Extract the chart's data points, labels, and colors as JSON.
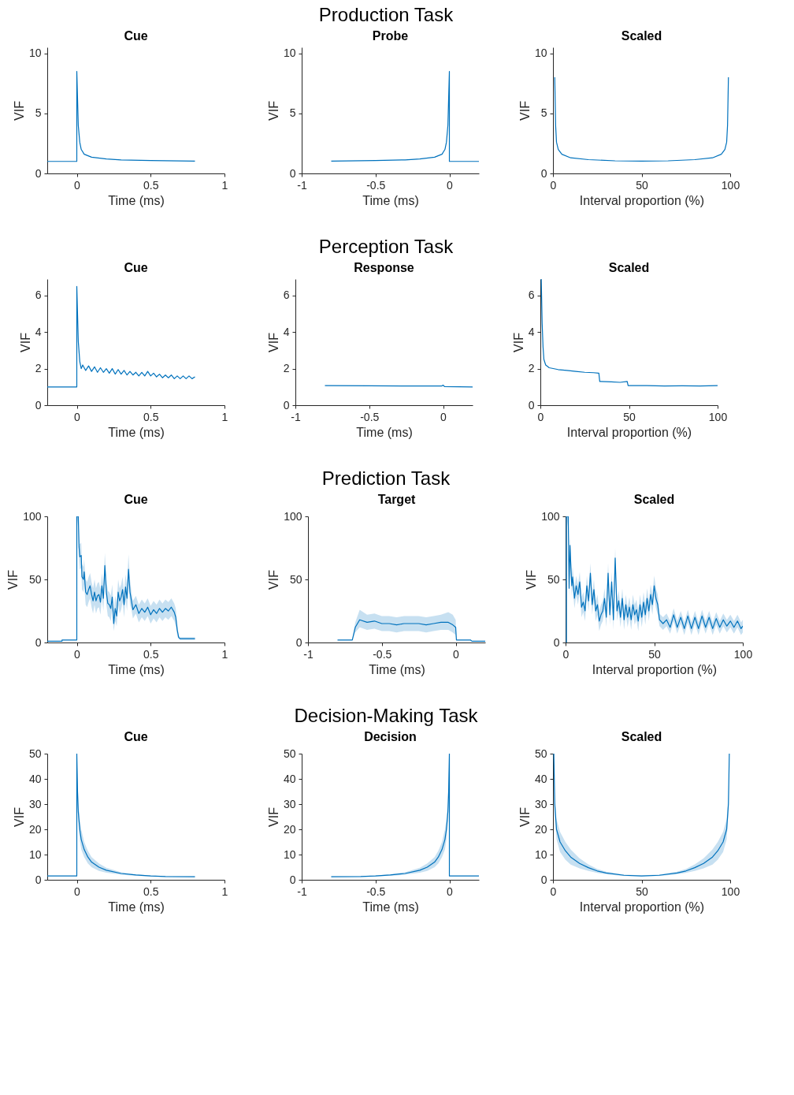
{
  "chart_data": [
    {
      "type": "other",
      "title": "Production Task"
    },
    {
      "type": "line",
      "title": "Cue",
      "xlabel": "Time (ms)",
      "ylabel": "VIF",
      "xlim": [
        -0.2,
        1
      ],
      "xticks": [
        0,
        0.5,
        1
      ],
      "ylim": [
        0,
        10.5
      ],
      "yticks": [
        0,
        5,
        10
      ],
      "series": [
        {
          "color": "#0072bd",
          "x": [
            -0.2,
            0,
            0,
            0.01,
            0.02,
            0.03,
            0.05,
            0.1,
            0.2,
            0.3,
            0.5,
            0.8
          ],
          "values": [
            1.0,
            1.0,
            8.5,
            4,
            2.6,
            2.0,
            1.6,
            1.35,
            1.2,
            1.13,
            1.07,
            1.03
          ]
        }
      ]
    },
    {
      "type": "line",
      "title": "Probe",
      "xlabel": "Time (ms)",
      "ylabel": "VIF",
      "xlim": [
        -1,
        0.2
      ],
      "xticks": [
        -1,
        -0.5,
        0
      ],
      "ylim": [
        0,
        10.5
      ],
      "yticks": [
        0,
        5,
        10
      ],
      "series": [
        {
          "color": "#0072bd",
          "x": [
            -0.8,
            -0.5,
            -0.3,
            -0.2,
            -0.1,
            -0.05,
            -0.03,
            -0.02,
            -0.01,
            0,
            0,
            0.2
          ],
          "values": [
            1.02,
            1.07,
            1.13,
            1.2,
            1.35,
            1.6,
            2.0,
            2.6,
            4,
            8.5,
            1.0,
            1.0
          ]
        }
      ]
    },
    {
      "type": "line",
      "title": "Scaled",
      "xlabel": "Interval proportion (%)",
      "ylabel": "VIF",
      "xlim": [
        0,
        100
      ],
      "xticks": [
        0,
        50,
        100
      ],
      "ylim": [
        0,
        10.5
      ],
      "yticks": [
        0,
        5,
        10
      ],
      "series": [
        {
          "color": "#0072bd",
          "x": [
            1,
            1.5,
            2,
            3,
            5,
            10,
            20,
            35,
            50,
            65,
            80,
            90,
            95,
            97,
            98,
            98.5,
            99
          ],
          "values": [
            8.0,
            4,
            2.6,
            2.0,
            1.6,
            1.3,
            1.15,
            1.05,
            1.02,
            1.05,
            1.15,
            1.3,
            1.6,
            2.0,
            2.6,
            4,
            8.0
          ]
        }
      ]
    },
    {
      "type": "other",
      "title": "Perception Task"
    },
    {
      "type": "line",
      "title": "Cue",
      "xlabel": "Time (ms)",
      "ylabel": "VIF",
      "xlim": [
        -0.2,
        1
      ],
      "xticks": [
        0,
        0.5,
        1
      ],
      "ylim": [
        0,
        6.9
      ],
      "yticks": [
        0,
        2,
        4,
        6
      ],
      "series": [
        {
          "color": "#0072bd",
          "x": [
            -0.2,
            0,
            0,
            0.005,
            0.01,
            0.02,
            0.03,
            0.04,
            0.06,
            0.08,
            0.1,
            0.12,
            0.14,
            0.16,
            0.18,
            0.2,
            0.22,
            0.24,
            0.26,
            0.28,
            0.3,
            0.32,
            0.34,
            0.36,
            0.38,
            0.4,
            0.42,
            0.44,
            0.46,
            0.48,
            0.5,
            0.52,
            0.54,
            0.56,
            0.58,
            0.6,
            0.62,
            0.64,
            0.66,
            0.68,
            0.7,
            0.72,
            0.74,
            0.76,
            0.78,
            0.8
          ],
          "values": [
            1,
            1,
            6.5,
            5,
            3.5,
            2.4,
            2.0,
            2.2,
            1.9,
            2.15,
            1.85,
            2.1,
            1.8,
            2.05,
            1.8,
            2.0,
            1.75,
            2.0,
            1.7,
            1.95,
            1.7,
            1.9,
            1.65,
            1.85,
            1.65,
            1.8,
            1.6,
            1.8,
            1.6,
            1.85,
            1.6,
            1.75,
            1.55,
            1.7,
            1.5,
            1.65,
            1.5,
            1.65,
            1.45,
            1.6,
            1.45,
            1.6,
            1.45,
            1.6,
            1.45,
            1.55
          ]
        }
      ]
    },
    {
      "type": "line",
      "title": "Response",
      "xlabel": "Time (ms)",
      "ylabel": "VIF",
      "xlim": [
        -1,
        0.2
      ],
      "xticks": [
        -1,
        -0.5,
        0
      ],
      "ylim": [
        0,
        6.9
      ],
      "yticks": [
        0,
        2,
        4,
        6
      ],
      "series": [
        {
          "color": "#0072bd",
          "x": [
            -0.8,
            -0.5,
            -0.2,
            -0.01,
            0,
            0.01,
            0.2
          ],
          "values": [
            1.07,
            1.06,
            1.05,
            1.05,
            1.1,
            1.02,
            1.0
          ]
        }
      ]
    },
    {
      "type": "line",
      "title": "Scaled",
      "xlabel": "Interval proportion (%)",
      "ylabel": "VIF",
      "xlim": [
        0,
        100
      ],
      "xticks": [
        0,
        50,
        100
      ],
      "ylim": [
        0,
        6.9
      ],
      "yticks": [
        0,
        2,
        4,
        6
      ],
      "series": [
        {
          "color": "#0072bd",
          "x": [
            0.5,
            1,
            1.5,
            2,
            3,
            5,
            10,
            15,
            20,
            25,
            30,
            33,
            33.5,
            40,
            45,
            49,
            49.5,
            60,
            70,
            80,
            90,
            100
          ],
          "values": [
            6.9,
            4.5,
            3.2,
            2.5,
            2.2,
            2.05,
            1.95,
            1.9,
            1.85,
            1.8,
            1.78,
            1.75,
            1.3,
            1.28,
            1.25,
            1.3,
            1.07,
            1.07,
            1.05,
            1.06,
            1.05,
            1.07
          ]
        }
      ]
    },
    {
      "type": "other",
      "title": "Prediction Task"
    },
    {
      "type": "line",
      "title": "Cue",
      "xlabel": "Time (ms)",
      "ylabel": "VIF",
      "xlim": [
        -0.2,
        1
      ],
      "xticks": [
        0,
        0.5,
        1
      ],
      "ylim": [
        0,
        100
      ],
      "yticks": [
        0,
        50,
        100
      ],
      "series": [
        {
          "color": "#0072bd",
          "x": [
            -0.2,
            -0.1,
            -0.1,
            0,
            0,
            0.01,
            0.015,
            0.02,
            0.03,
            0.035,
            0.045,
            0.05,
            0.06,
            0.07,
            0.08,
            0.09,
            0.1,
            0.11,
            0.12,
            0.13,
            0.14,
            0.15,
            0.16,
            0.17,
            0.18,
            0.19,
            0.2,
            0.21,
            0.22,
            0.23,
            0.24,
            0.25,
            0.26,
            0.27,
            0.28,
            0.29,
            0.3,
            0.31,
            0.32,
            0.33,
            0.34,
            0.35,
            0.36,
            0.37,
            0.38,
            0.4,
            0.42,
            0.44,
            0.46,
            0.48,
            0.5,
            0.52,
            0.54,
            0.56,
            0.58,
            0.6,
            0.62,
            0.64,
            0.66,
            0.67,
            0.68,
            0.69,
            0.7,
            0.75,
            0.8
          ],
          "values": [
            1,
            1,
            2,
            2,
            100,
            100,
            76,
            68,
            69,
            52,
            50,
            56,
            40,
            38,
            42,
            45,
            38,
            33,
            40,
            33,
            37,
            38,
            32,
            45,
            35,
            61,
            40,
            31,
            30,
            27,
            36,
            15,
            27,
            21,
            40,
            33,
            36,
            42,
            30,
            44,
            35,
            58,
            40,
            33,
            26,
            30,
            23,
            27,
            24,
            28,
            22,
            26,
            23,
            27,
            24,
            27,
            25,
            28,
            24,
            20,
            10,
            4,
            3,
            3,
            3
          ],
          "lower": [
            1,
            1,
            2,
            2,
            100,
            90,
            66,
            58,
            59,
            42,
            40,
            46,
            30,
            28,
            32,
            35,
            28,
            23,
            30,
            23,
            27,
            28,
            22,
            35,
            25,
            51,
            30,
            21,
            20,
            17,
            26,
            9,
            17,
            13,
            30,
            23,
            26,
            32,
            20,
            34,
            25,
            48,
            30,
            26,
            19,
            23,
            16,
            20,
            17,
            21,
            15,
            19,
            16,
            20,
            17,
            20,
            18,
            21,
            17,
            13,
            5,
            3,
            2,
            2,
            2
          ],
          "upper": [
            1,
            1,
            2,
            2,
            100,
            100,
            86,
            78,
            79,
            62,
            60,
            66,
            50,
            48,
            52,
            55,
            48,
            43,
            50,
            43,
            47,
            48,
            42,
            55,
            45,
            71,
            50,
            41,
            40,
            37,
            46,
            25,
            37,
            31,
            50,
            43,
            46,
            52,
            40,
            54,
            45,
            70,
            50,
            40,
            33,
            37,
            30,
            34,
            31,
            35,
            29,
            33,
            30,
            34,
            31,
            34,
            32,
            35,
            31,
            27,
            15,
            5,
            4,
            4,
            4
          ]
        }
      ]
    },
    {
      "type": "line",
      "title": "Target",
      "xlabel": "Time (ms)",
      "ylabel": "VIF",
      "xlim": [
        -1,
        0.2
      ],
      "xticks": [
        -1,
        -0.5,
        0
      ],
      "ylim": [
        0,
        100
      ],
      "yticks": [
        0,
        50,
        100
      ],
      "series": [
        {
          "color": "#0072bd",
          "x": [
            -0.8,
            -0.7,
            -0.68,
            -0.65,
            -0.6,
            -0.55,
            -0.5,
            -0.45,
            -0.4,
            -0.35,
            -0.3,
            -0.25,
            -0.2,
            -0.15,
            -0.1,
            -0.05,
            -0.02,
            0,
            0.005,
            0.1,
            0.11,
            0.2
          ],
          "values": [
            2,
            2,
            12,
            18,
            16,
            17,
            15,
            15,
            14,
            15,
            15,
            15,
            14,
            15,
            16,
            16,
            14,
            12,
            2,
            2,
            1,
            1
          ],
          "lower": [
            2,
            2,
            8,
            12,
            10,
            11,
            9,
            9,
            8,
            9,
            9,
            9,
            8,
            9,
            10,
            10,
            8,
            6,
            2,
            2,
            1,
            1
          ],
          "upper": [
            2,
            2,
            16,
            26,
            22,
            23,
            21,
            21,
            20,
            21,
            21,
            21,
            20,
            21,
            22,
            24,
            22,
            18,
            2,
            2,
            1,
            1
          ]
        }
      ]
    },
    {
      "type": "line",
      "title": "Scaled",
      "xlabel": "Interval proportion (%)",
      "ylabel": "VIF",
      "xlim": [
        0,
        100
      ],
      "xticks": [
        0,
        50,
        100
      ],
      "ylim": [
        0,
        100
      ],
      "yticks": [
        0,
        50,
        100
      ],
      "series": [
        {
          "color": "#0072bd",
          "x": [
            0.5,
            0.5,
            1.5,
            2,
            2.5,
            3,
            3.5,
            4,
            5,
            6,
            7,
            8,
            9,
            10,
            11,
            12,
            13,
            14,
            15,
            16,
            17,
            18,
            19,
            20,
            21,
            22,
            23,
            24,
            25,
            26,
            27,
            28,
            29,
            30,
            31,
            32,
            33,
            34,
            35,
            36,
            37,
            38,
            39,
            40,
            41,
            42,
            43,
            44,
            45,
            46,
            47,
            48,
            49,
            50,
            51,
            52,
            53,
            55,
            57,
            59,
            61,
            63,
            65,
            67,
            69,
            71,
            73,
            75,
            77,
            79,
            81,
            83,
            85,
            87,
            89,
            91,
            93,
            95,
            97,
            99,
            100
          ],
          "values": [
            0,
            100,
            100,
            43,
            77,
            60,
            45,
            52,
            35,
            45,
            38,
            48,
            28,
            32,
            25,
            45,
            33,
            55,
            30,
            42,
            25,
            30,
            17,
            22,
            25,
            35,
            20,
            55,
            22,
            48,
            18,
            67,
            25,
            33,
            20,
            35,
            18,
            30,
            20,
            28,
            18,
            30,
            22,
            26,
            17,
            30,
            20,
            32,
            22,
            35,
            25,
            38,
            30,
            45,
            35,
            30,
            18,
            15,
            18,
            12,
            22,
            12,
            20,
            11,
            21,
            11,
            20,
            11,
            21,
            12,
            20,
            11,
            19,
            12,
            18,
            13,
            17,
            12,
            17,
            11,
            13
          ],
          "lower": [
            0,
            100,
            90,
            35,
            69,
            52,
            37,
            44,
            27,
            37,
            30,
            40,
            20,
            24,
            17,
            37,
            25,
            47,
            22,
            34,
            17,
            22,
            9,
            14,
            17,
            27,
            12,
            47,
            14,
            40,
            10,
            59,
            17,
            25,
            12,
            27,
            10,
            22,
            12,
            20,
            10,
            22,
            14,
            18,
            9,
            22,
            12,
            24,
            14,
            27,
            17,
            30,
            22,
            37,
            27,
            22,
            13,
            10,
            13,
            7,
            17,
            7,
            15,
            6,
            16,
            6,
            15,
            6,
            16,
            7,
            15,
            6,
            14,
            7,
            13,
            8,
            12,
            7,
            12,
            6,
            8
          ],
          "upper": [
            0,
            100,
            100,
            51,
            85,
            68,
            53,
            60,
            43,
            53,
            46,
            56,
            36,
            40,
            33,
            53,
            41,
            63,
            38,
            50,
            33,
            38,
            25,
            30,
            33,
            43,
            28,
            63,
            30,
            56,
            26,
            75,
            33,
            41,
            28,
            43,
            26,
            38,
            28,
            36,
            26,
            38,
            30,
            34,
            25,
            38,
            28,
            40,
            30,
            43,
            33,
            46,
            38,
            53,
            43,
            38,
            23,
            20,
            23,
            17,
            27,
            17,
            25,
            16,
            26,
            16,
            25,
            16,
            26,
            17,
            25,
            16,
            24,
            17,
            23,
            18,
            22,
            17,
            22,
            16,
            18
          ]
        }
      ]
    },
    {
      "type": "other",
      "title": "Decision-Making Task"
    },
    {
      "type": "line",
      "title": "Cue",
      "xlabel": "Time (ms)",
      "ylabel": "VIF",
      "xlim": [
        -0.2,
        1
      ],
      "xticks": [
        0,
        0.5,
        1
      ],
      "ylim": [
        0,
        50
      ],
      "yticks": [
        0,
        10,
        20,
        30,
        40,
        50
      ],
      "series": [
        {
          "color": "#0072bd",
          "x": [
            -0.2,
            0,
            0,
            0.005,
            0.01,
            0.02,
            0.03,
            0.05,
            0.075,
            0.1,
            0.15,
            0.2,
            0.3,
            0.4,
            0.5,
            0.6,
            0.8
          ],
          "values": [
            1.5,
            1.5,
            50,
            35,
            27,
            20,
            16,
            12,
            9,
            7,
            5,
            3.8,
            2.5,
            1.9,
            1.5,
            1.3,
            1.2
          ],
          "lower": [
            1.5,
            1.5,
            50,
            30,
            23,
            16,
            12,
            9,
            6.5,
            5,
            3.5,
            2.8,
            2,
            1.6,
            1.3,
            1.2,
            1.1
          ],
          "upper": [
            1.5,
            1.5,
            50,
            40,
            31,
            24,
            20,
            15,
            11.5,
            9,
            6.5,
            4.8,
            3,
            2.2,
            1.7,
            1.4,
            1.3
          ]
        }
      ]
    },
    {
      "type": "line",
      "title": "Decision",
      "xlabel": "Time (ms)",
      "ylabel": "VIF",
      "xlim": [
        -1,
        0.2
      ],
      "xticks": [
        -1,
        -0.5,
        0
      ],
      "ylim": [
        0,
        50
      ],
      "yticks": [
        0,
        10,
        20,
        30,
        40,
        50
      ],
      "series": [
        {
          "color": "#0072bd",
          "x": [
            -0.8,
            -0.6,
            -0.5,
            -0.4,
            -0.3,
            -0.2,
            -0.15,
            -0.1,
            -0.075,
            -0.05,
            -0.03,
            -0.02,
            -0.01,
            -0.005,
            0,
            0,
            0.2
          ],
          "values": [
            1.2,
            1.3,
            1.5,
            1.9,
            2.5,
            3.8,
            5,
            7,
            9,
            12,
            16,
            20,
            27,
            35,
            50,
            1.5,
            1.5
          ],
          "lower": [
            1.1,
            1.2,
            1.3,
            1.6,
            2,
            2.8,
            3.5,
            5,
            6.5,
            9,
            12,
            16,
            23,
            30,
            50,
            1.5,
            1.5
          ],
          "upper": [
            1.3,
            1.4,
            1.7,
            2.2,
            3,
            4.8,
            6.5,
            9,
            11.5,
            15,
            20,
            24,
            31,
            40,
            50,
            1.5,
            1.5
          ]
        }
      ]
    },
    {
      "type": "line",
      "title": "Scaled",
      "xlabel": "Interval proportion (%)",
      "ylabel": "VIF",
      "xlim": [
        0,
        100
      ],
      "xticks": [
        0,
        50,
        100
      ],
      "ylim": [
        0,
        50
      ],
      "yticks": [
        0,
        10,
        20,
        30,
        40,
        50
      ],
      "series": [
        {
          "color": "#0072bd",
          "x": [
            0.5,
            1,
            2,
            4,
            7,
            10,
            15,
            20,
            25,
            30,
            40,
            50,
            60,
            70,
            75,
            80,
            85,
            90,
            93,
            96,
            98,
            99,
            99.5
          ],
          "values": [
            50,
            30,
            20,
            15,
            11.5,
            9,
            6.5,
            4.8,
            3.5,
            2.7,
            1.8,
            1.5,
            1.8,
            2.7,
            3.5,
            4.8,
            6.5,
            9,
            11.5,
            15,
            20,
            30,
            50
          ],
          "lower": [
            50,
            26,
            16,
            11,
            8,
            6,
            4.5,
            3.5,
            2.7,
            2.2,
            1.5,
            1.3,
            1.5,
            2.2,
            2.7,
            3.5,
            4.5,
            6,
            8,
            11,
            16,
            26,
            50
          ],
          "upper": [
            50,
            34,
            24,
            19,
            15,
            12,
            8.5,
            6.1,
            4.3,
            3.2,
            2.1,
            1.7,
            2.1,
            3.2,
            4.3,
            6.1,
            8.5,
            12,
            15,
            19,
            24,
            34,
            50
          ]
        }
      ]
    }
  ]
}
